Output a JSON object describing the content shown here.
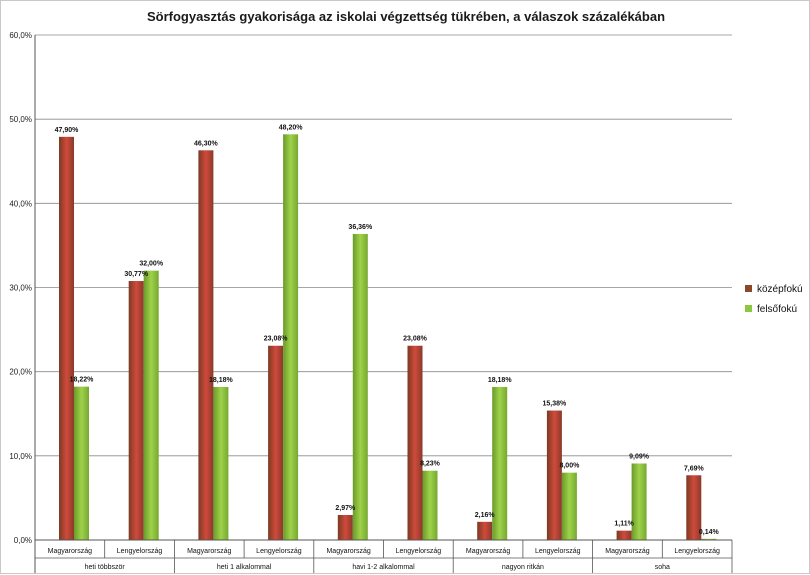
{
  "chart_data": {
    "type": "bar",
    "title": "Sörfogyasztás gyakorisága az iskolai végzettség tükrében, a válaszok százalékában",
    "ylim": [
      0,
      60
    ],
    "yticks": [
      "0,0%",
      "10,0%",
      "20,0%",
      "30,0%",
      "40,0%",
      "50,0%",
      "60,0%"
    ],
    "grid": true,
    "legend_position": "right",
    "groups": [
      "heti többször",
      "heti 1 alkalommal",
      "havi 1-2 alkalommal",
      "nagyon ritkán",
      "soha"
    ],
    "categories": [
      "Magyarország",
      "Lengyelország",
      "Magyarország",
      "Lengyelország",
      "Magyarország",
      "Lengyelország",
      "Magyarország",
      "Lengyelország",
      "Magyarország",
      "Lengyelország"
    ],
    "series": [
      {
        "name": "középfokú",
        "color": "#c0392b",
        "values": [
          47.9,
          30.77,
          46.3,
          23.08,
          2.97,
          23.08,
          2.16,
          15.38,
          1.11,
          7.69
        ],
        "labels": [
          "47,90%",
          "30,77%",
          "46,30%",
          "23,08%",
          "2,97%",
          "23,08%",
          "2,16%",
          "15,38%",
          "1,11%",
          "7,69%"
        ]
      },
      {
        "name": "felsőfokú",
        "color": "#8dc63f",
        "values": [
          18.22,
          32.0,
          18.18,
          48.2,
          36.36,
          8.23,
          18.18,
          8.0,
          9.09,
          0.14
        ],
        "labels": [
          "18,22%",
          "32,00%",
          "18,18%",
          "48,20%",
          "36,36%",
          "8,23%",
          "18,18%",
          "8,00%",
          "9,09%",
          "0,14%"
        ]
      }
    ]
  }
}
